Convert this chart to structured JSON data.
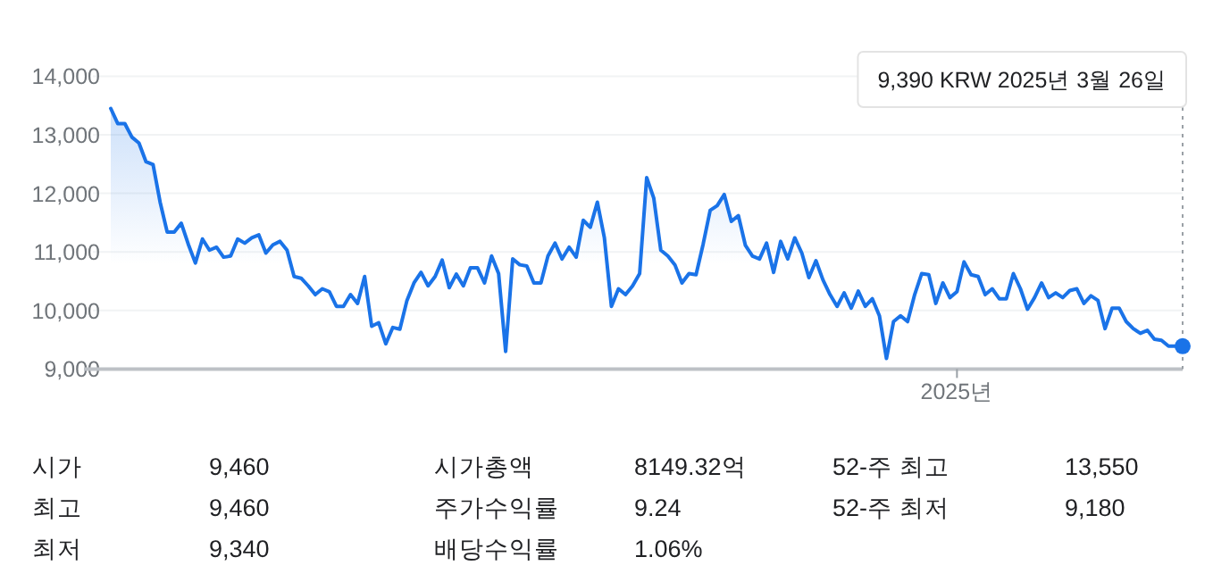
{
  "chart_data": {
    "type": "area",
    "categories": [
      null,
      null,
      null,
      null,
      null,
      null,
      null,
      null,
      null,
      null,
      null,
      null,
      null,
      null,
      null,
      null,
      null,
      null,
      null,
      null,
      null,
      null,
      null,
      null,
      null,
      null,
      null,
      null,
      null,
      null,
      null,
      null,
      null,
      null,
      null,
      null,
      null,
      null,
      null,
      null,
      null,
      null,
      null,
      null,
      null,
      null,
      null,
      null,
      null,
      null,
      null,
      null,
      null,
      null,
      null,
      null,
      null,
      null,
      null,
      null,
      null,
      null,
      null,
      null,
      null,
      null,
      null,
      null,
      null,
      null,
      null,
      null,
      null,
      null,
      null,
      null,
      null,
      null,
      null,
      null,
      null,
      null,
      null,
      null,
      null,
      null,
      null,
      null,
      null,
      null,
      null,
      null,
      null,
      null,
      null,
      null,
      null,
      null,
      null,
      null,
      null,
      null,
      null,
      null,
      null,
      null,
      null,
      null,
      null,
      null,
      null,
      null,
      null,
      null,
      null,
      null,
      null,
      null,
      null,
      null,
      "2025년",
      null,
      null,
      null,
      null,
      null,
      null,
      null,
      null,
      null,
      null,
      null,
      null,
      null,
      null,
      null,
      null,
      null,
      null,
      null,
      null,
      null,
      null,
      null,
      null,
      null,
      null,
      null,
      null,
      null,
      null,
      null,
      null
    ],
    "series": [
      {
        "color": "#1a73e8",
        "values": [
          13450,
          13190,
          13190,
          12960,
          12860,
          12540,
          12490,
          11850,
          11340,
          11340,
          11490,
          11130,
          10810,
          11220,
          11030,
          11080,
          10910,
          10930,
          11220,
          11150,
          11240,
          11290,
          10980,
          11120,
          11180,
          11030,
          10580,
          10550,
          10420,
          10270,
          10370,
          10320,
          10070,
          10070,
          10270,
          10120,
          10580,
          9730,
          9790,
          9430,
          9710,
          9680,
          10170,
          10470,
          10650,
          10420,
          10580,
          10860,
          10390,
          10620,
          10420,
          10730,
          10730,
          10470,
          10930,
          10630,
          9300,
          10880,
          10780,
          10760,
          10470,
          10470,
          10930,
          11150,
          10880,
          11080,
          10910,
          11540,
          11420,
          11850,
          11240,
          10070,
          10370,
          10270,
          10420,
          10630,
          12270,
          11920,
          11030,
          10930,
          10780,
          10470,
          10630,
          10610,
          11130,
          11710,
          11790,
          11980,
          11520,
          11620,
          11110,
          10930,
          10880,
          11150,
          10650,
          11180,
          10880,
          11240,
          10980,
          10560,
          10850,
          10520,
          10270,
          10070,
          10300,
          10040,
          10330,
          10070,
          10200,
          9910,
          9180,
          9810,
          9910,
          9810,
          10270,
          10630,
          10610,
          10120,
          10470,
          10220,
          10320,
          10830,
          10610,
          10580,
          10270,
          10370,
          10200,
          10200,
          10630,
          10370,
          10020,
          10220,
          10470,
          10220,
          10300,
          10220,
          10340,
          10370,
          10120,
          10250,
          10170,
          9690,
          10040,
          10040,
          9810,
          9690,
          9610,
          9660,
          9510,
          9490,
          9390,
          9390,
          9390
        ]
      }
    ],
    "ylim": [
      9000,
      14000
    ],
    "yticks": [
      {
        "value": 9000,
        "label": "9,000"
      },
      {
        "value": 10000,
        "label": "10,000"
      },
      {
        "value": 11000,
        "label": "11,000"
      },
      {
        "value": 12000,
        "label": "12,000"
      },
      {
        "value": 13000,
        "label": "13,000"
      },
      {
        "value": 14000,
        "label": "14,000"
      }
    ],
    "grid": "y",
    "annotations": [
      "9,390 KRW  2025년 3월 26일",
      "시가",
      "9,460",
      "시가총액",
      "8149.32억",
      "52-주 최고",
      "13,550",
      "최고",
      "9,460",
      "주가수익률",
      "9.24",
      "52-주 최저",
      "9,180",
      "최저",
      "9,340",
      "배당수익률",
      "1.06%"
    ]
  }
}
